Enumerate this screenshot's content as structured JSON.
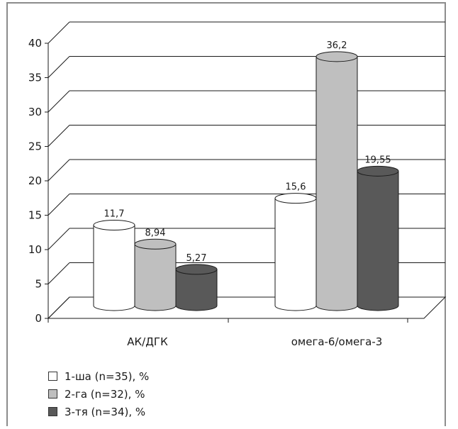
{
  "chart_data": {
    "type": "bar",
    "style": "3d-cylinder",
    "categories": [
      "АК/ДГК",
      "омега-6/омега-3"
    ],
    "series": [
      {
        "name": "1-ша (n=35), %",
        "values": [
          11.7,
          15.6
        ],
        "labels": [
          "11,7",
          "15,6"
        ],
        "color": "#ffffff"
      },
      {
        "name": "2-га (n=32), %",
        "values": [
          8.94,
          36.2
        ],
        "labels": [
          "8,94",
          "36,2"
        ],
        "color": "#bfbfbf"
      },
      {
        "name": "3-тя (n=34), %",
        "values": [
          5.27,
          19.55
        ],
        "labels": [
          "5,27",
          "19,55"
        ],
        "color": "#595959"
      }
    ],
    "ylim": [
      0,
      40
    ],
    "yticks": [
      "0",
      "5",
      "10",
      "15",
      "20",
      "25",
      "30",
      "35",
      "40"
    ],
    "grid": true,
    "legend": "bottom-left"
  }
}
